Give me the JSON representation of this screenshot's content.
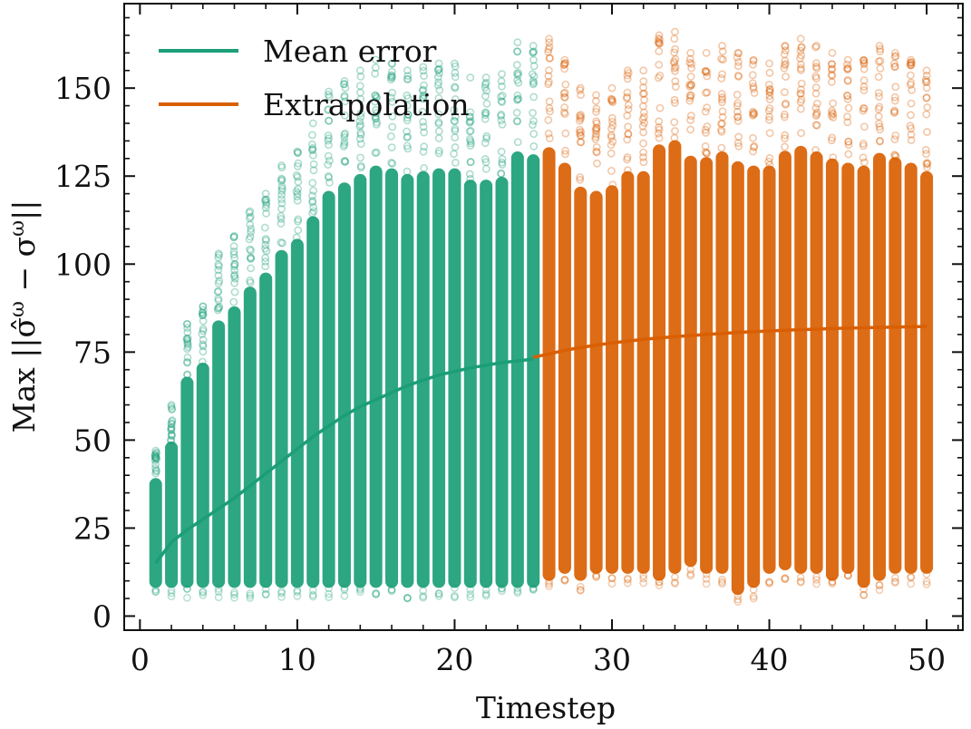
{
  "chart_data": {
    "type": "scatter",
    "title": "",
    "xlabel": "Timestep",
    "ylabel": "Max ||σ̂ω − σω||",
    "xlim": [
      -1,
      52.3
    ],
    "ylim": [
      -4,
      174
    ],
    "x_ticks": [
      0,
      10,
      20,
      30,
      40,
      50
    ],
    "y_ticks": [
      0,
      25,
      50,
      75,
      100,
      125,
      150
    ],
    "x_tick_labels": [
      "0",
      "10",
      "20",
      "30",
      "40",
      "50"
    ],
    "y_tick_labels": [
      "0",
      "25",
      "50",
      "75",
      "100",
      "125",
      "150"
    ],
    "grid": false,
    "legend_position": "top-left",
    "series": [
      {
        "name": "Mean error",
        "color": "#1b9e77",
        "x": [
          1,
          2,
          3,
          4,
          5,
          6,
          7,
          8,
          9,
          10,
          11,
          12,
          13,
          14,
          15,
          16,
          17,
          18,
          19,
          20,
          21,
          22,
          23,
          24,
          25
        ],
        "mean": [
          15,
          21,
          24.5,
          27.5,
          30.5,
          33.5,
          37,
          40.5,
          44,
          47.5,
          51,
          54,
          57,
          59.5,
          61.5,
          63.5,
          65.5,
          67,
          68.5,
          69.5,
          70.5,
          71.3,
          72,
          72.5,
          73
        ],
        "scatter_min": [
          8,
          8,
          8,
          8,
          8,
          8,
          8,
          8,
          8,
          8,
          8,
          8,
          8,
          8,
          8,
          8,
          8,
          8,
          8,
          8,
          8,
          8,
          8,
          8,
          8
        ],
        "scatter_max": [
          47,
          60,
          83,
          88,
          103,
          108,
          115,
          120,
          128,
          132,
          140,
          149,
          152,
          155,
          158,
          157,
          155,
          156,
          157,
          157,
          153,
          153,
          154,
          163,
          162
        ]
      },
      {
        "name": "Extrapolation",
        "color": "#d95f02",
        "x": [
          25,
          26,
          27,
          28,
          29,
          30,
          31,
          32,
          33,
          34,
          35,
          36,
          37,
          38,
          39,
          40,
          41,
          42,
          43,
          44,
          45,
          46,
          47,
          48,
          49,
          50
        ],
        "mean": [
          73.5,
          74.5,
          75.5,
          76.3,
          77,
          77.6,
          78.1,
          78.6,
          79,
          79.4,
          79.7,
          80,
          80.3,
          80.6,
          80.8,
          81,
          81.2,
          81.4,
          81.5,
          81.7,
          81.8,
          81.9,
          82,
          82.1,
          82.2,
          82.3
        ],
        "scatter_min": [
          8,
          10,
          12,
          10,
          12,
          12,
          12,
          12,
          10,
          12,
          14,
          12,
          12,
          6,
          8,
          12,
          13,
          12,
          12,
          10,
          12,
          8,
          10,
          12,
          12,
          12
        ],
        "scatter_max": [
          160,
          164,
          158,
          150,
          148,
          150,
          155,
          155,
          165,
          166,
          160,
          160,
          162,
          160,
          158,
          157,
          162,
          164,
          162,
          160,
          158,
          158,
          162,
          160,
          158,
          155
        ]
      }
    ]
  }
}
